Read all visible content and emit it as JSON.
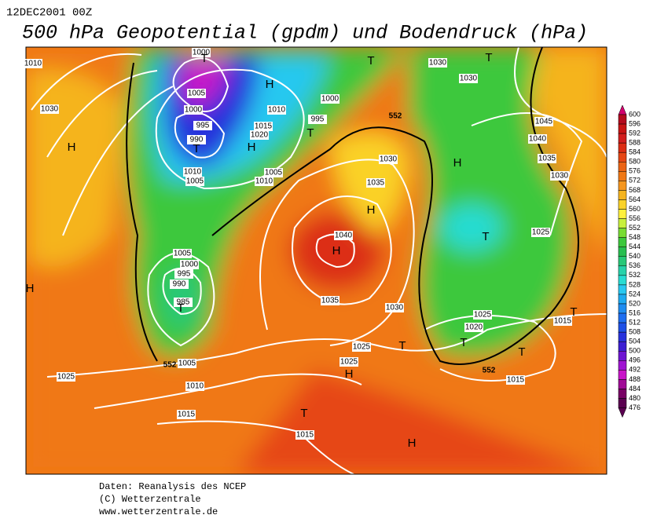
{
  "header": {
    "date": "12DEC2001 00Z",
    "title": "500 hPa Geopotential (gpdm) und Bodendruck (hPa)"
  },
  "footer": [
    "Daten: Reanalysis des NCEP",
    "(C) Wetterzentrale",
    "www.wetterzentrale.de"
  ],
  "legend": {
    "levels": [
      600,
      596,
      592,
      588,
      584,
      580,
      576,
      572,
      568,
      564,
      560,
      556,
      552,
      548,
      544,
      540,
      536,
      532,
      528,
      524,
      520,
      516,
      512,
      508,
      504,
      500,
      496,
      492,
      488,
      484,
      480,
      476
    ],
    "colors": [
      "#d2006e",
      "#b40a1e",
      "#c81414",
      "#d21e1e",
      "#dc2d14",
      "#e64614",
      "#eb6414",
      "#f07814",
      "#f5961e",
      "#f5b41e",
      "#fad228",
      "#fff03c",
      "#c8f03c",
      "#78dc32",
      "#3cc83c",
      "#28be50",
      "#28c878",
      "#28d2aa",
      "#28dcd2",
      "#28c8f0",
      "#1eaaf0",
      "#1e8cf0",
      "#1e6ef0",
      "#1e50e6",
      "#2832dc",
      "#3c1ed2",
      "#6e14d2",
      "#a014d2",
      "#c814c8",
      "#a00a96",
      "#780064",
      "#5a0050"
    ]
  },
  "isobar_labels": [
    1000,
    1010,
    1030,
    1030,
    1030,
    1005,
    1000,
    1010,
    1000,
    995,
    995,
    1015,
    1020,
    990,
    1010,
    1005,
    1005,
    1010,
    1030,
    1035,
    1045,
    1040,
    1035,
    1030,
    1025,
    1040,
    1005,
    1000,
    995,
    990,
    985,
    1035,
    1030,
    1025,
    1020,
    1015,
    1025,
    1025,
    1005,
    1015,
    1025,
    1010,
    1015,
    1015,
    552,
    552,
    552
  ],
  "centers": [
    "T",
    "H",
    "T",
    "T",
    "H",
    "T",
    "H",
    "T",
    "H",
    "H",
    "T",
    "H",
    "H",
    "T",
    "T",
    "T",
    "T",
    "T",
    "H",
    "T",
    "H"
  ]
}
